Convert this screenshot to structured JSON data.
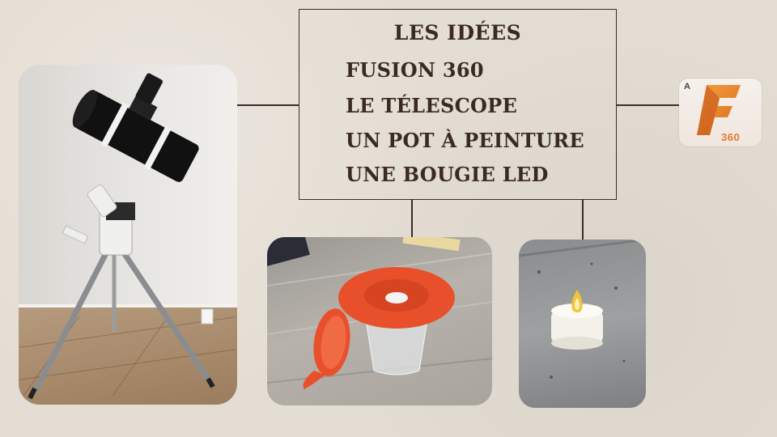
{
  "title": "LES IDÉES",
  "ideas": [
    "FUSION 360",
    "LE TÉLESCOPE",
    "UN POT À PEINTURE",
    "UNE BOUGIE LED"
  ],
  "logo": {
    "badge": "A",
    "number": "360",
    "accent_color": "#e7782b"
  },
  "images": {
    "telescope": "telescope-photo",
    "paint_pot": "paint-pot-photo",
    "led_candle": "led-candle-photo"
  },
  "colors": {
    "background": "#e4ddd3",
    "text": "#3a2a22",
    "pot_orange": "#e8502b",
    "flame": "#f2c23a"
  }
}
